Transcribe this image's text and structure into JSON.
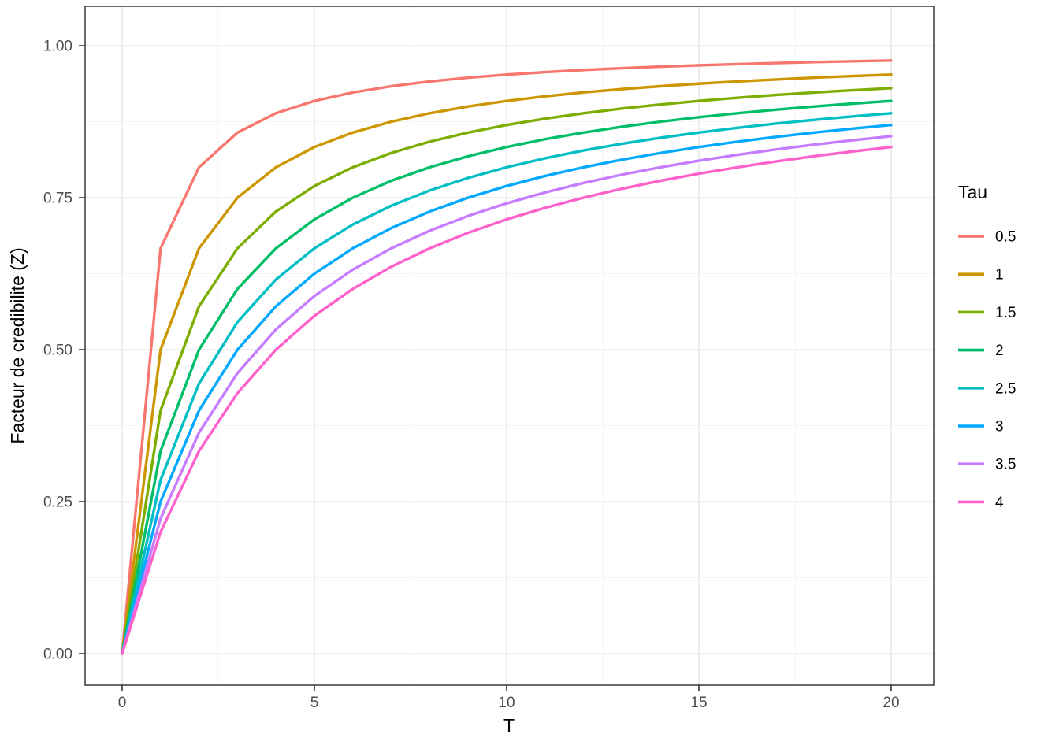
{
  "page": {
    "background": "#FFFFFF"
  },
  "chart_data": {
    "type": "line",
    "title": "",
    "xlabel": "T",
    "ylabel": "Facteur de credibilite (Z)",
    "legend_title": "Tau",
    "legend_position": "right",
    "grid": true,
    "panel_background": "#FFFFFF",
    "grid_major_color": "#EBEBEB",
    "grid_minor_color": "#F4F4F4",
    "panel_border_color": "#2B2B2B",
    "tick_mark_color": "#333333",
    "tick_label_color": "#4D4D4D",
    "xlim": [
      0,
      20
    ],
    "ylim": [
      0.0,
      1.0
    ],
    "x_tick_labels": [
      "0",
      "5",
      "10",
      "15",
      "20"
    ],
    "x_tick_values": [
      0,
      5,
      10,
      15,
      20
    ],
    "y_tick_labels": [
      "0.00",
      "0.25",
      "0.50",
      "0.75",
      "1.00"
    ],
    "y_tick_values": [
      0,
      0.25,
      0.5,
      0.75,
      1.0
    ],
    "x_minor": [
      2.5,
      7.5,
      12.5,
      17.5
    ],
    "y_minor": [
      0.125,
      0.375,
      0.625,
      0.875
    ],
    "x": [
      0,
      1,
      2,
      3,
      4,
      5,
      6,
      7,
      8,
      9,
      10,
      11,
      12,
      13,
      14,
      15,
      16,
      17,
      18,
      19,
      20
    ],
    "series": [
      {
        "name": "0.5",
        "color": "#F8766D",
        "values": [
          0,
          0.6667,
          0.8,
          0.8571,
          0.8889,
          0.9091,
          0.9231,
          0.9333,
          0.9412,
          0.9474,
          0.9524,
          0.9565,
          0.96,
          0.963,
          0.9655,
          0.9677,
          0.9697,
          0.9714,
          0.973,
          0.9744,
          0.9756
        ]
      },
      {
        "name": "1",
        "color": "#CD9600",
        "values": [
          0,
          0.5,
          0.6667,
          0.75,
          0.8,
          0.8333,
          0.8571,
          0.875,
          0.8889,
          0.9,
          0.9091,
          0.9167,
          0.9231,
          0.9286,
          0.9333,
          0.9375,
          0.9412,
          0.9444,
          0.9474,
          0.95,
          0.9524
        ]
      },
      {
        "name": "1.5",
        "color": "#7CAE00",
        "values": [
          0,
          0.4,
          0.5714,
          0.6667,
          0.7273,
          0.7692,
          0.8,
          0.8235,
          0.8421,
          0.8571,
          0.8696,
          0.88,
          0.8889,
          0.8966,
          0.9032,
          0.9091,
          0.9143,
          0.9189,
          0.9231,
          0.9268,
          0.9302
        ]
      },
      {
        "name": "2",
        "color": "#00BE67",
        "values": [
          0,
          0.3333,
          0.5,
          0.6,
          0.6667,
          0.7143,
          0.75,
          0.7778,
          0.8,
          0.8182,
          0.8333,
          0.8462,
          0.8571,
          0.8667,
          0.875,
          0.8824,
          0.8889,
          0.8947,
          0.9,
          0.9048,
          0.9091
        ]
      },
      {
        "name": "2.5",
        "color": "#00BFC4",
        "values": [
          0,
          0.2857,
          0.4444,
          0.5455,
          0.6154,
          0.6667,
          0.7059,
          0.7368,
          0.7619,
          0.7826,
          0.8,
          0.8148,
          0.8276,
          0.8387,
          0.8485,
          0.8571,
          0.8649,
          0.8718,
          0.878,
          0.8837,
          0.8889
        ]
      },
      {
        "name": "3",
        "color": "#00A9FF",
        "values": [
          0,
          0.25,
          0.4,
          0.5,
          0.5714,
          0.625,
          0.6667,
          0.7,
          0.7273,
          0.75,
          0.7692,
          0.7857,
          0.8,
          0.8125,
          0.8235,
          0.8333,
          0.8421,
          0.85,
          0.8571,
          0.8636,
          0.8696
        ]
      },
      {
        "name": "3.5",
        "color": "#C77CFF",
        "values": [
          0,
          0.2222,
          0.3636,
          0.4615,
          0.5333,
          0.5882,
          0.6316,
          0.6667,
          0.6957,
          0.72,
          0.7407,
          0.7586,
          0.7742,
          0.7879,
          0.8,
          0.8108,
          0.8205,
          0.8293,
          0.8372,
          0.8444,
          0.8511
        ]
      },
      {
        "name": "4",
        "color": "#FF61CC",
        "values": [
          0,
          0.2,
          0.3333,
          0.4286,
          0.5,
          0.5556,
          0.6,
          0.6364,
          0.6667,
          0.6923,
          0.7143,
          0.7333,
          0.75,
          0.7647,
          0.7778,
          0.7895,
          0.8,
          0.8095,
          0.8182,
          0.8261,
          0.8333
        ]
      }
    ]
  }
}
